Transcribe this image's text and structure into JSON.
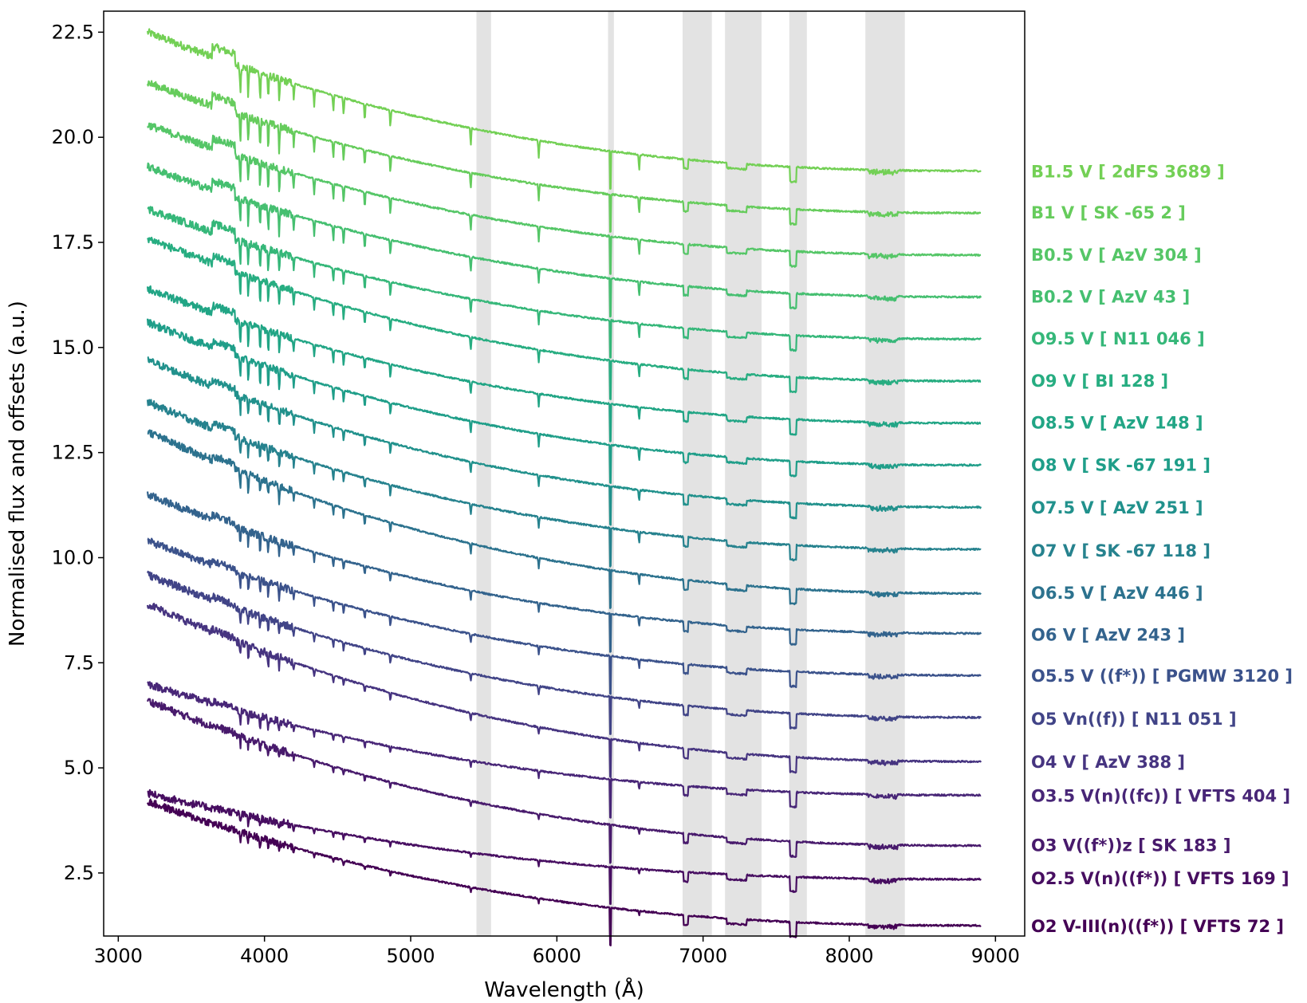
{
  "chart_data": {
    "type": "line",
    "title": "",
    "xlabel": "Wavelength (Å)",
    "ylabel": "Normalised flux and offsets (a.u.)",
    "xlim": [
      2900,
      9200
    ],
    "ylim": [
      1.0,
      23.0
    ],
    "grid": false,
    "legend": "right (labels at end of each spectrum)",
    "xticks": [
      3000,
      4000,
      5000,
      6000,
      7000,
      8000,
      9000
    ],
    "xtick_labels": [
      "3000",
      "4000",
      "5000",
      "6000",
      "7000",
      "8000",
      "9000"
    ],
    "yticks": [
      2.5,
      5.0,
      7.5,
      10.0,
      12.5,
      15.0,
      17.5,
      20.0,
      22.5
    ],
    "ytick_labels": [
      "2.5",
      "5.0",
      "7.5",
      "10.0",
      "12.5",
      "15.0",
      "17.5",
      "20.0",
      "22.5"
    ],
    "wavelength_range": [
      3200,
      8900
    ],
    "shaded_bands": [
      {
        "x0": 5450,
        "x1": 5550
      },
      {
        "x0": 6350,
        "x1": 6390
      },
      {
        "x0": 6860,
        "x1": 7060
      },
      {
        "x0": 7150,
        "x1": 7400
      },
      {
        "x0": 7590,
        "x1": 7710
      },
      {
        "x0": 8110,
        "x1": 8380
      }
    ],
    "absorption_lines": [
      3835,
      3889,
      3970,
      4026,
      4101,
      4200,
      4340,
      4471,
      4541,
      4686,
      4861,
      5411,
      5876,
      6563
    ],
    "series": [
      {
        "name": "B1.5 V [ 2dFS 3689 ]",
        "color": "#73d055",
        "start": 22.5,
        "end": 19.2,
        "label_y": 19.2
      },
      {
        "name": "B1 V [ SK -65 2 ]",
        "color": "#66cc5c",
        "start": 21.3,
        "end": 18.2,
        "label_y": 18.22
      },
      {
        "name": "B0.5 V [ AzV 304 ]",
        "color": "#55c667",
        "start": 20.3,
        "end": 17.2,
        "label_y": 17.22
      },
      {
        "name": "B0.2 V [ AzV 43 ]",
        "color": "#45bf70",
        "start": 19.3,
        "end": 16.2,
        "label_y": 16.22
      },
      {
        "name": "O9.5 V [ N11 046 ]",
        "color": "#35b779",
        "start": 18.3,
        "end": 15.2,
        "label_y": 15.22
      },
      {
        "name": "O9 V [ BI 128 ]",
        "color": "#27ad81",
        "start": 17.6,
        "end": 14.2,
        "label_y": 14.22
      },
      {
        "name": "O8.5 V [ AzV 148 ]",
        "color": "#21a585",
        "start": 16.4,
        "end": 13.2,
        "label_y": 13.22
      },
      {
        "name": "O8 V [ SK -67 191 ]",
        "color": "#1f9e89",
        "start": 15.6,
        "end": 12.2,
        "label_y": 12.22
      },
      {
        "name": "O7.5 V [ AzV 251 ]",
        "color": "#21918c",
        "start": 14.7,
        "end": 11.2,
        "label_y": 11.2
      },
      {
        "name": "O7 V [ SK -67 118 ]",
        "color": "#26828e",
        "start": 13.7,
        "end": 10.2,
        "label_y": 10.18
      },
      {
        "name": "O6.5 V [ AzV 446 ]",
        "color": "#2c728e",
        "start": 13.0,
        "end": 9.15,
        "label_y": 9.17
      },
      {
        "name": "O6 V [ AzV 243 ]",
        "color": "#33638d",
        "start": 11.5,
        "end": 8.2,
        "label_y": 8.18
      },
      {
        "name": "O5.5 V ((f*)) [ PGMW 3120 ]",
        "color": "#3b528b",
        "start": 10.4,
        "end": 7.2,
        "label_y": 7.2
      },
      {
        "name": "O5 Vn((f)) [ N11 051 ]",
        "color": "#414487",
        "start": 9.6,
        "end": 6.2,
        "label_y": 6.18
      },
      {
        "name": "O4 V [ AzV 388 ]",
        "color": "#463480",
        "start": 8.9,
        "end": 5.15,
        "label_y": 5.15
      },
      {
        "name": "O3.5 V(n)((fc)) [ VFTS 404 ]",
        "color": "#482677",
        "start": 7.0,
        "end": 4.35,
        "label_y": 4.35
      },
      {
        "name": "O3 V((f*))z [ SK 183 ]",
        "color": "#481a6c",
        "start": 6.6,
        "end": 3.15,
        "label_y": 3.17
      },
      {
        "name": "O2.5 V(n)((f*)) [ VFTS 169 ]",
        "color": "#470e61",
        "start": 4.4,
        "end": 2.35,
        "label_y": 2.38
      },
      {
        "name": "O2 V-III(n)((f*)) [ VFTS 72 ]",
        "color": "#440154",
        "start": 4.2,
        "end": 1.25,
        "label_y": 1.25
      }
    ]
  }
}
